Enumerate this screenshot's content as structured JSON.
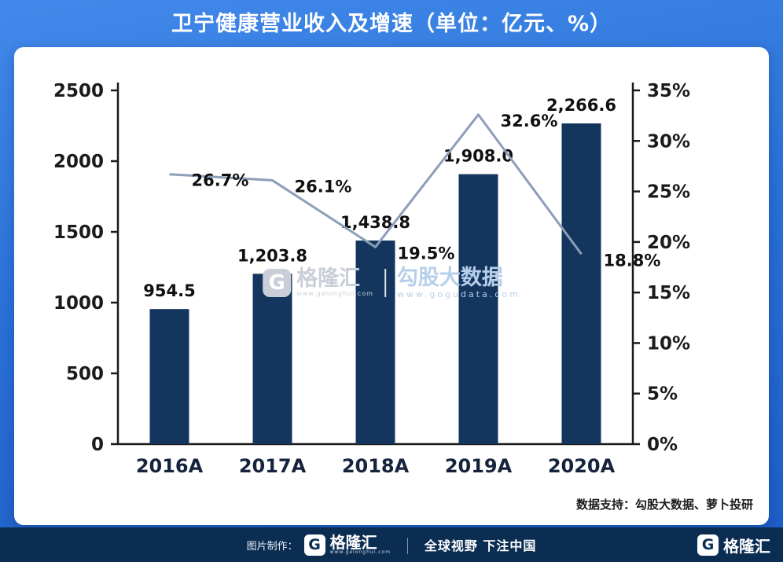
{
  "title": "卫宁健康营业收入及增速（单位：亿元、%）",
  "chart_data": {
    "type": "bar",
    "subtype": "bar+line combo, dual axis",
    "title": "卫宁健康营业收入及增速（单位：亿元、%）",
    "categories": [
      "2016A",
      "2017A",
      "2018A",
      "2019A",
      "2020A"
    ],
    "series": [
      {
        "name": "营业收入",
        "type": "bar",
        "axis": "left",
        "values": [
          954.5,
          1203.8,
          1438.8,
          1908.0,
          2266.6
        ],
        "labels": [
          "954.5",
          "1,203.8",
          "1,438.8",
          "1,908.0",
          "2,266.6"
        ],
        "color": "#14365e"
      },
      {
        "name": "增速",
        "type": "line",
        "axis": "right",
        "values": [
          26.7,
          26.1,
          19.5,
          32.6,
          18.8
        ],
        "labels": [
          "26.7%",
          "26.1%",
          "19.5%",
          "32.6%",
          "18.8%"
        ],
        "color": "#8c9eb8"
      }
    ],
    "left_axis": {
      "min": 0,
      "max": 2500,
      "step": 500,
      "tick_values": [
        0,
        500,
        1000,
        1500,
        2000,
        2500
      ],
      "ticks": [
        "0",
        "500",
        "1000",
        "1500",
        "2000",
        "2500"
      ]
    },
    "right_axis": {
      "min": 0,
      "max": 35,
      "step": 5,
      "tick_values": [
        0,
        5,
        10,
        15,
        20,
        25,
        30,
        35
      ],
      "ticks": [
        "0%",
        "5%",
        "10%",
        "15%",
        "20%",
        "25%",
        "30%",
        "35%"
      ]
    },
    "grid": false,
    "legend": "none"
  },
  "watermark": {
    "brand": "格隆汇",
    "brand_url": "www.gelonghui.com",
    "right_title": "勾股大数据",
    "right_url": "www.gogudata.com"
  },
  "source_note": "数据支持：勾股大数据、萝卜投研",
  "footer": {
    "made_by_label": "图片制作：",
    "brand": "格隆汇",
    "brand_url": "www.gelonghui.com",
    "divider": "|",
    "slogan": "全球视野 下注中国",
    "right_brand": "格隆汇"
  },
  "icons": {
    "gelonghui_logo": "G"
  },
  "colors": {
    "background_top": "#4189ea",
    "background_bottom": "#1d5cc6",
    "bar": "#14365e",
    "line": "#8c9eb8",
    "footer_bar": "#0c2d52",
    "axis": "#1a1a1a"
  }
}
